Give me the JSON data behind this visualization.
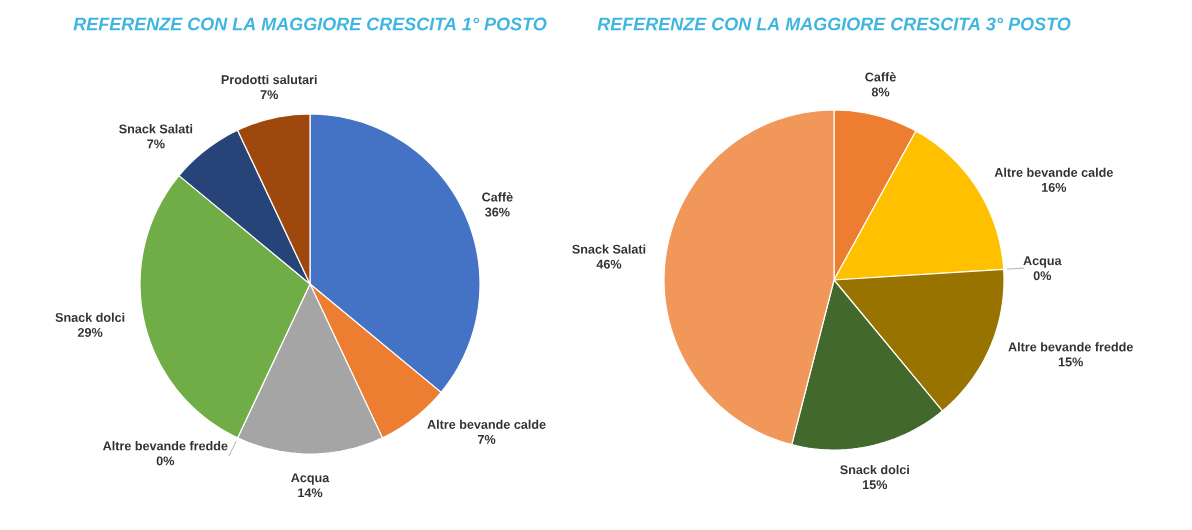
{
  "chart_data": [
    {
      "type": "pie",
      "title": "REFERENZE CON LA MAGGIORE CRESCITA 1° POSTO",
      "categories": [
        "Caffè",
        "Altre bevande calde",
        "Acqua",
        "Altre bevande fredde",
        "Snack dolci",
        "Snack Salati",
        "Prodotti salutari"
      ],
      "values": [
        36,
        7,
        14,
        0,
        29,
        7,
        7
      ],
      "colors": [
        "#4472c4",
        "#ed7d31",
        "#a5a5a5",
        "#ffc000",
        "#70ad47",
        "#264478",
        "#9e480e"
      ],
      "value_labels": [
        "36%",
        "7%",
        "14%",
        "0%",
        "29%",
        "7%",
        "7%"
      ]
    },
    {
      "type": "pie",
      "title": "REFERENZE CON LA MAGGIORE CRESCITA 3° POSTO",
      "categories": [
        "Caffè",
        "Altre bevande calde",
        "Acqua",
        "Altre bevande fredde",
        "Snack dolci",
        "Snack Salati"
      ],
      "values": [
        8,
        16,
        0,
        15,
        15,
        46
      ],
      "colors": [
        "#ed7d31",
        "#ffc000",
        "#5b9bd5",
        "#997300",
        "#43682b",
        "#f1975a"
      ],
      "value_labels": [
        "8%",
        "16%",
        "0%",
        "15%",
        "15%",
        "46%"
      ]
    }
  ]
}
